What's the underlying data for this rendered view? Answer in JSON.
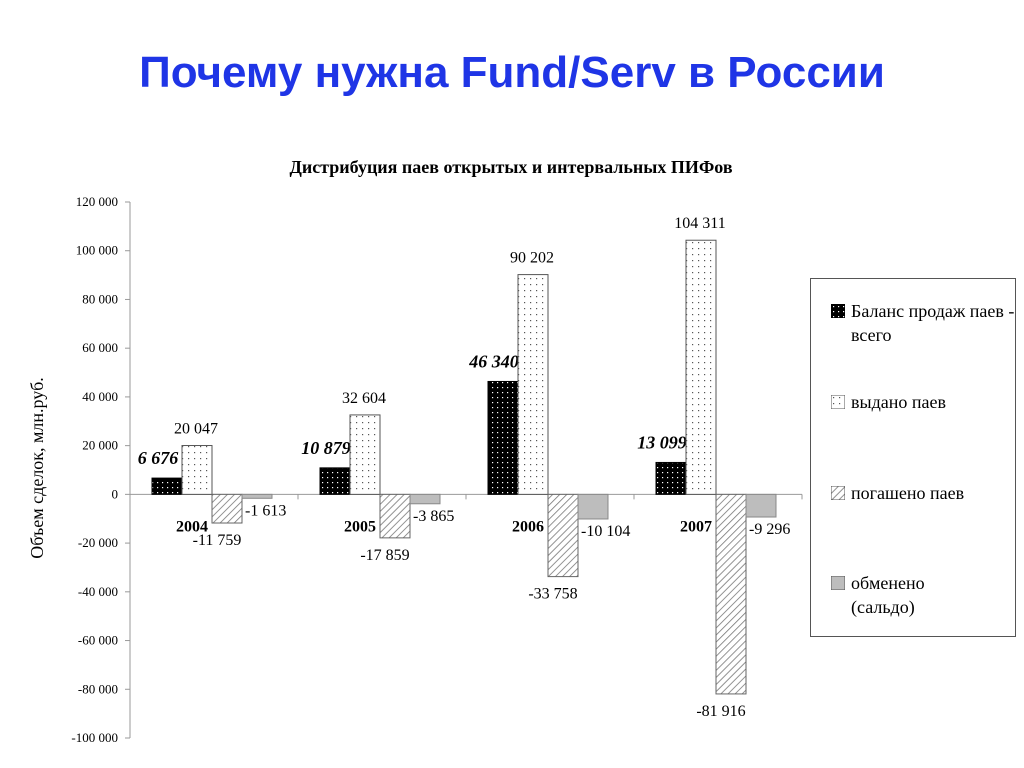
{
  "slide": {
    "title": "Почему нужна Fund/Serv в России"
  },
  "colors": {
    "title": "#1f35e6",
    "axis": "#999999",
    "obmen": "#bdbdbd"
  },
  "chart_data": {
    "type": "bar",
    "title": "Дистрибуция паев открытых и интервальных ПИФов",
    "ylabel": "Объем сделок, млн.руб.",
    "xlabel": "",
    "ylim": [
      -100000,
      120000
    ],
    "yticks": [
      120000,
      100000,
      80000,
      60000,
      40000,
      20000,
      0,
      -20000,
      -40000,
      -60000,
      -80000,
      -100000
    ],
    "ytick_labels": [
      "120 000",
      "100 000",
      "80 000",
      "60 000",
      "40 000",
      "20 000",
      "0",
      "-20 000",
      "-40 000",
      "-60 000",
      "-80 000",
      "-100 000"
    ],
    "categories": [
      "2004",
      "2005",
      "2006",
      "2007"
    ],
    "series": [
      {
        "name": "Баланс продаж паев - всего",
        "values": [
          6676,
          10879,
          46340,
          13099
        ],
        "labels": [
          "6 676",
          "10 879",
          "46 340",
          "13 099"
        ],
        "pattern": "black-dots"
      },
      {
        "name": "выдано паев",
        "values": [
          20047,
          32604,
          90202,
          104311
        ],
        "labels": [
          "20 047",
          "32 604",
          "90 202",
          "104 311"
        ],
        "pattern": "white-dots"
      },
      {
        "name": "погашено паев",
        "values": [
          -11759,
          -17859,
          -33758,
          -81916
        ],
        "labels": [
          "-11 759",
          "-17 859",
          "-33 758",
          "-81 916"
        ],
        "pattern": "diagonal-hatch"
      },
      {
        "name": "обменено (сальдо)",
        "values": [
          -1613,
          -3865,
          -10104,
          -9296
        ],
        "labels": [
          "-1 613",
          "-3 865",
          "-10 104",
          "-9 296"
        ],
        "pattern": "solid-gray"
      }
    ],
    "grid": false,
    "legend": "right"
  }
}
